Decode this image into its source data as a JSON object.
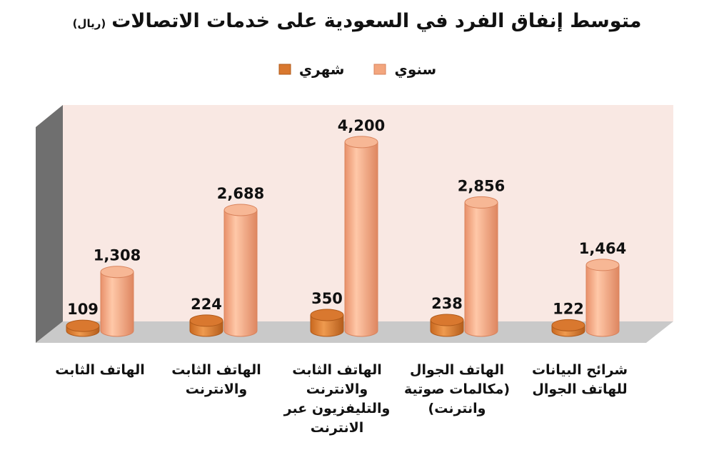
{
  "title": "متوسط إنفاق الفرد في السعودية على خدمات الاتصالات",
  "subtitle": "(ريال)",
  "colors": {
    "annual": "#f3a67e",
    "annual_dark": "#d9835c",
    "monthly": "#d9782f",
    "monthly_dark": "#b05a1a",
    "wall": "#f9e8e3",
    "floor": "#c9c9c9",
    "side_wall": "#6f6f6f"
  },
  "chart_data": {
    "type": "bar",
    "categories": [
      "الهاتف الثابت",
      "الهاتف الثابت والانترنت",
      "الهاتف الثابت والانترنت والتليفزيون عبر الانترنت",
      "الهاتف الجوال (مكالمات صوتية وانترنت)",
      "شرائح البيانات للهاتف الجوال"
    ],
    "category_lines": [
      [
        "الهاتف الثابت"
      ],
      [
        "الهاتف الثابت",
        "والانترنت"
      ],
      [
        "الهاتف الثابت",
        "والانترنت",
        "والتليفزيون عبر",
        "الانترنت"
      ],
      [
        "الهاتف الجوال",
        "(مكالمات صوتية",
        "وانترنت)"
      ],
      [
        "شرائح البيانات",
        "للهاتف الجوال"
      ]
    ],
    "series": [
      {
        "name": "شهري",
        "values": [
          109,
          224,
          350,
          238,
          122
        ],
        "labels": [
          "109",
          "224",
          "350",
          "238",
          "122"
        ]
      },
      {
        "name": "سنوي",
        "values": [
          1308,
          2688,
          4200,
          2856,
          1464
        ],
        "labels": [
          "1,308",
          "2,688",
          "4,200",
          "2,856",
          "1,464"
        ]
      }
    ],
    "ylim": [
      0,
      4500
    ],
    "legend_position": "top-center",
    "grid": false
  }
}
